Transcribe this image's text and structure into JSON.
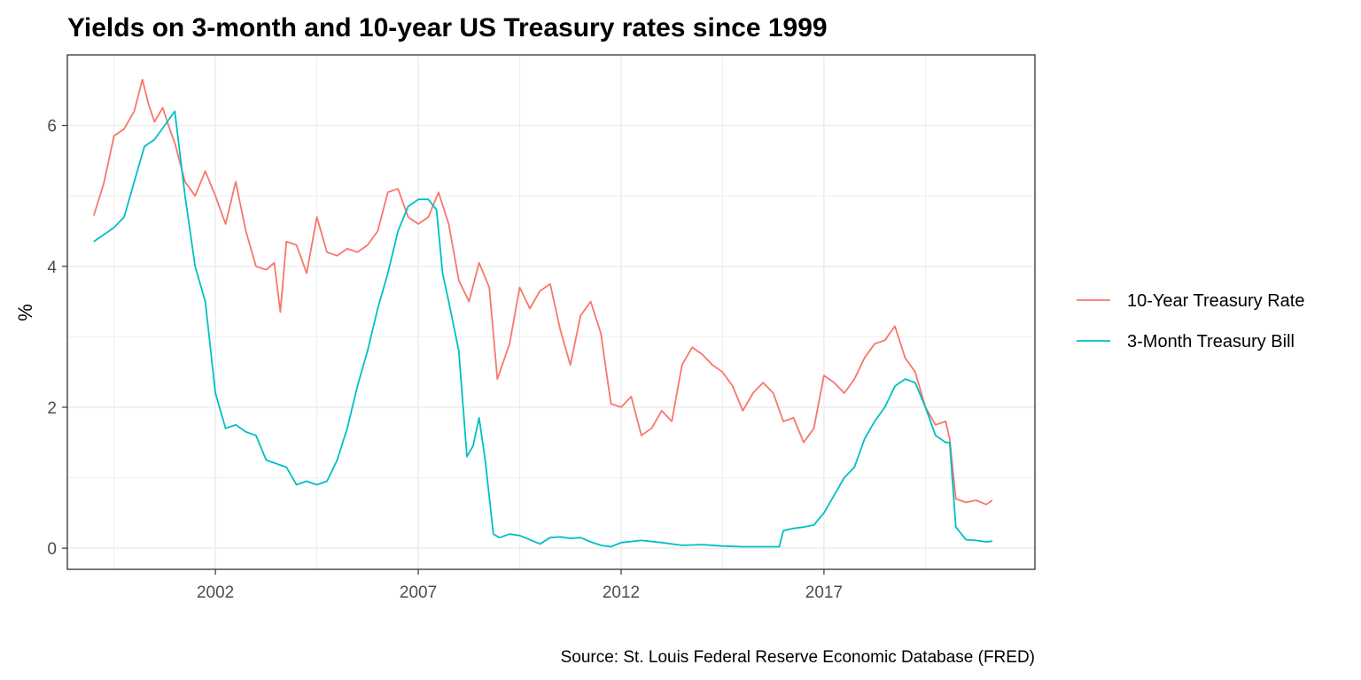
{
  "chart_data": {
    "type": "line",
    "title": "Yields on 3-month and 10-year US Treasury rates since 1999",
    "xlabel": "",
    "ylabel": "%",
    "caption": "Source: St. Louis Federal Reserve Economic Database (FRED)",
    "x_ticks": [
      "2002",
      "2007",
      "2012",
      "2017"
    ],
    "y_ticks": [
      "0",
      "2",
      "4",
      "6"
    ],
    "xlim": [
      1998.35,
      2022.2
    ],
    "ylim": [
      -0.3,
      7.0
    ],
    "grid": true,
    "legend_position": "right",
    "colors": {
      "ten_year": "#F8766D",
      "three_month": "#00BFC4",
      "panel_border": "#333333",
      "grid": "#ebebeb"
    },
    "series": [
      {
        "name": "10-Year Treasury Rate",
        "key": "ten_year",
        "x": [
          1999.0,
          1999.25,
          1999.5,
          1999.75,
          2000.0,
          2000.2,
          2000.35,
          2000.5,
          2000.7,
          2000.9,
          2001.0,
          2001.25,
          2001.5,
          2001.75,
          2002.0,
          2002.25,
          2002.5,
          2002.75,
          2003.0,
          2003.25,
          2003.45,
          2003.6,
          2003.75,
          2004.0,
          2004.25,
          2004.5,
          2004.75,
          2005.0,
          2005.25,
          2005.5,
          2005.75,
          2006.0,
          2006.25,
          2006.5,
          2006.75,
          2007.0,
          2007.25,
          2007.5,
          2007.75,
          2008.0,
          2008.25,
          2008.5,
          2008.75,
          2008.95,
          2009.25,
          2009.5,
          2009.75,
          2010.0,
          2010.25,
          2010.5,
          2010.75,
          2011.0,
          2011.25,
          2011.5,
          2011.75,
          2012.0,
          2012.25,
          2012.5,
          2012.75,
          2013.0,
          2013.25,
          2013.5,
          2013.75,
          2014.0,
          2014.25,
          2014.5,
          2014.75,
          2015.0,
          2015.25,
          2015.5,
          2015.75,
          2016.0,
          2016.25,
          2016.5,
          2016.75,
          2017.0,
          2017.25,
          2017.5,
          2017.75,
          2018.0,
          2018.25,
          2018.5,
          2018.75,
          2019.0,
          2019.25,
          2019.5,
          2019.75,
          2020.0,
          2020.1,
          2020.25,
          2020.5,
          2020.75,
          2021.0,
          2021.15
        ],
        "values": [
          4.72,
          5.18,
          5.85,
          5.95,
          6.2,
          6.65,
          6.3,
          6.05,
          6.25,
          5.9,
          5.75,
          5.2,
          5.0,
          5.35,
          5.0,
          4.6,
          5.2,
          4.5,
          4.0,
          3.95,
          4.05,
          3.35,
          4.35,
          4.3,
          3.9,
          4.7,
          4.2,
          4.15,
          4.25,
          4.2,
          4.3,
          4.5,
          5.05,
          5.1,
          4.7,
          4.6,
          4.7,
          5.05,
          4.6,
          3.8,
          3.5,
          4.05,
          3.7,
          2.4,
          2.9,
          3.7,
          3.4,
          3.65,
          3.75,
          3.1,
          2.6,
          3.3,
          3.5,
          3.05,
          2.05,
          2.0,
          2.15,
          1.6,
          1.7,
          1.95,
          1.8,
          2.6,
          2.85,
          2.75,
          2.6,
          2.5,
          2.3,
          1.95,
          2.2,
          2.35,
          2.2,
          1.8,
          1.85,
          1.5,
          1.7,
          2.45,
          2.35,
          2.2,
          2.4,
          2.7,
          2.9,
          2.95,
          3.15,
          2.7,
          2.5,
          2.0,
          1.75,
          1.8,
          1.55,
          0.7,
          0.65,
          0.68,
          0.62,
          0.68
        ]
      },
      {
        "name": "3-Month Treasury Bill",
        "key": "three_month",
        "x": [
          1999.0,
          1999.25,
          1999.5,
          1999.75,
          2000.0,
          2000.25,
          2000.5,
          2000.75,
          2001.0,
          2001.25,
          2001.5,
          2001.75,
          2002.0,
          2002.25,
          2002.5,
          2002.75,
          2003.0,
          2003.25,
          2003.5,
          2003.75,
          2004.0,
          2004.25,
          2004.5,
          2004.75,
          2005.0,
          2005.25,
          2005.5,
          2005.75,
          2006.0,
          2006.25,
          2006.5,
          2006.75,
          2007.0,
          2007.25,
          2007.45,
          2007.6,
          2007.75,
          2008.0,
          2008.2,
          2008.35,
          2008.5,
          2008.65,
          2008.85,
          2009.0,
          2009.25,
          2009.5,
          2009.75,
          2010.0,
          2010.25,
          2010.5,
          2010.75,
          2011.0,
          2011.25,
          2011.5,
          2011.75,
          2012.0,
          2012.5,
          2013.0,
          2013.5,
          2014.0,
          2014.5,
          2015.0,
          2015.5,
          2015.9,
          2016.0,
          2016.25,
          2016.5,
          2016.75,
          2017.0,
          2017.25,
          2017.5,
          2017.75,
          2018.0,
          2018.25,
          2018.5,
          2018.75,
          2019.0,
          2019.25,
          2019.5,
          2019.75,
          2020.0,
          2020.1,
          2020.25,
          2020.5,
          2020.75,
          2021.0,
          2021.15
        ],
        "values": [
          4.35,
          4.45,
          4.55,
          4.7,
          5.2,
          5.7,
          5.8,
          6.0,
          6.2,
          5.0,
          4.0,
          3.5,
          2.2,
          1.7,
          1.75,
          1.65,
          1.6,
          1.25,
          1.2,
          1.15,
          0.9,
          0.95,
          0.9,
          0.95,
          1.25,
          1.7,
          2.3,
          2.8,
          3.4,
          3.9,
          4.5,
          4.85,
          4.95,
          4.95,
          4.8,
          3.9,
          3.5,
          2.8,
          1.3,
          1.45,
          1.85,
          1.25,
          0.2,
          0.15,
          0.2,
          0.18,
          0.12,
          0.06,
          0.15,
          0.16,
          0.14,
          0.15,
          0.09,
          0.04,
          0.02,
          0.08,
          0.11,
          0.08,
          0.04,
          0.05,
          0.03,
          0.02,
          0.02,
          0.02,
          0.25,
          0.28,
          0.3,
          0.33,
          0.5,
          0.75,
          1.0,
          1.15,
          1.55,
          1.8,
          2.0,
          2.3,
          2.4,
          2.35,
          2.0,
          1.6,
          1.5,
          1.5,
          0.3,
          0.12,
          0.11,
          0.09,
          0.1
        ]
      }
    ]
  }
}
